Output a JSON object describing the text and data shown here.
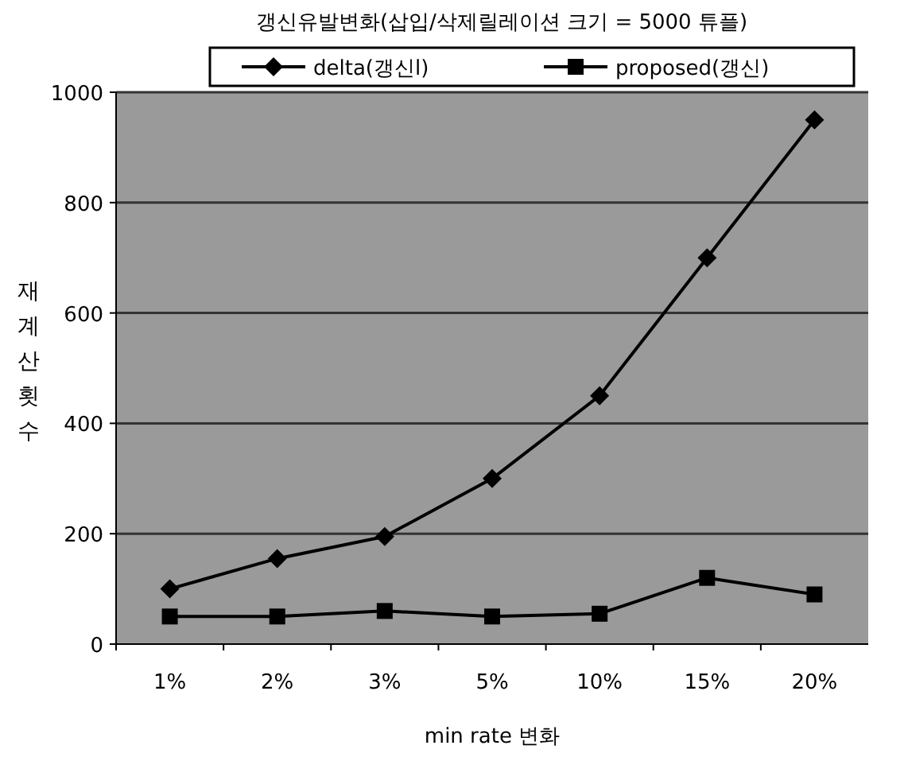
{
  "chart_data": {
    "type": "line",
    "title": "갱신유발변화(삽입/삭제릴레이션 크기 = 5000 튜플)",
    "xlabel": "min rate 변화",
    "ylabel": "재계산횟수",
    "categories": [
      "1%",
      "2%",
      "3%",
      "5%",
      "10%",
      "15%",
      "20%"
    ],
    "series": [
      {
        "name": "delta(갱신l)",
        "color": "#000000",
        "marker": "diamond",
        "values": [
          100,
          155,
          195,
          300,
          450,
          700,
          950
        ]
      },
      {
        "name": "proposed(갱신)",
        "color": "#000000",
        "marker": "square",
        "values": [
          50,
          50,
          60,
          50,
          55,
          120,
          90
        ]
      }
    ],
    "ylim": [
      0,
      1000
    ],
    "yticks": [
      0,
      200,
      400,
      600,
      800,
      1000
    ],
    "grid": "y",
    "legend": "top"
  }
}
